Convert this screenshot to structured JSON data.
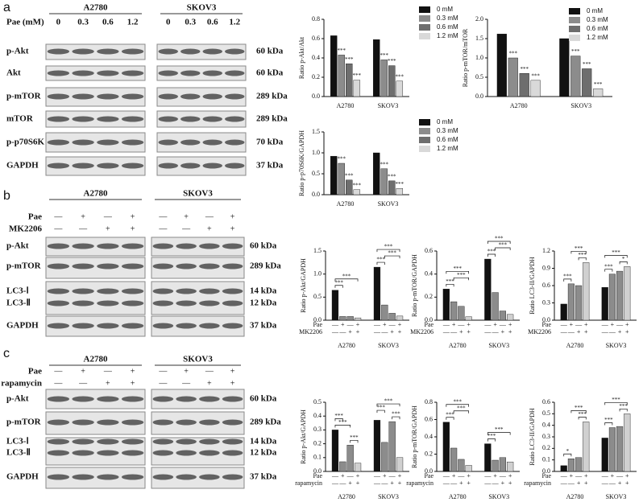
{
  "blots": {
    "a": {
      "label": "a",
      "treatment": "Pae (mM)",
      "cells": [
        {
          "name": "A2780",
          "lanes": [
            "0",
            "0.3",
            "0.6",
            "1.2"
          ]
        },
        {
          "name": "SKOV3",
          "lanes": [
            "0",
            "0.3",
            "0.6",
            "1.2"
          ]
        }
      ],
      "rows": [
        {
          "name": "p-Akt",
          "size": "60 kDa"
        },
        {
          "name": "Akt",
          "size": "60 kDa"
        },
        {
          "name": "p-mTOR",
          "size": "289 kDa"
        },
        {
          "name": "mTOR",
          "size": "289 kDa"
        },
        {
          "name": "p-p70S6K",
          "size": "70 kDa"
        },
        {
          "name": "GAPDH",
          "size": "37 kDa"
        }
      ]
    },
    "b": {
      "label": "b",
      "cells": [
        "A2780",
        "SKOV3"
      ],
      "treatments": [
        {
          "name": "Pae",
          "signs": [
            "—",
            "+",
            "—",
            "+"
          ]
        },
        {
          "name": "MK2206",
          "signs": [
            "—",
            "—",
            "+",
            "+"
          ]
        }
      ],
      "rows": [
        {
          "name": "p-Akt",
          "size": "60 kDa"
        },
        {
          "name": "p-mTOR",
          "size": "289 kDa"
        },
        {
          "name": "LC3-Ⅰ",
          "size": "14 kDa"
        },
        {
          "name": "LC3-Ⅱ",
          "size": "12 kDa"
        },
        {
          "name": "GAPDH",
          "size": "37 kDa"
        }
      ]
    },
    "c": {
      "label": "c",
      "cells": [
        "A2780",
        "SKOV3"
      ],
      "treatments": [
        {
          "name": "Pae",
          "signs": [
            "—",
            "+",
            "—",
            "+"
          ]
        },
        {
          "name": "rapamycin",
          "signs": [
            "—",
            "—",
            "+",
            "+"
          ]
        }
      ],
      "rows": [
        {
          "name": "p-Akt",
          "size": "60 kDa"
        },
        {
          "name": "p-mTOR",
          "size": "289 kDa"
        },
        {
          "name": "LC3-Ⅰ",
          "size": "14 kDa"
        },
        {
          "name": "LC3-Ⅱ",
          "size": "12 kDa"
        },
        {
          "name": "GAPDH",
          "size": "37 kDa"
        }
      ]
    }
  },
  "chart_data": [
    {
      "type": "bar",
      "ylabel": "Ratio p-Akt/Akt",
      "categories": [
        "A2780",
        "SKOV3"
      ],
      "ylim": [
        0,
        0.8
      ],
      "yticks": [
        {
          "value": 0,
          "label": "0.0"
        },
        0.2,
        0.4,
        0.6,
        0.8
      ],
      "series": [
        {
          "name": "0 mM",
          "color": "#111111",
          "values": [
            0.63,
            0.59
          ]
        },
        {
          "name": "0.3 mM",
          "color": "#8c8c8c",
          "values": [
            0.43,
            0.38
          ],
          "significance": [
            "***",
            "***"
          ]
        },
        {
          "name": "0.6 mM",
          "color": "#6e6e6e",
          "values": [
            0.34,
            0.32
          ],
          "significance": [
            "***",
            "***"
          ]
        },
        {
          "name": "1.2 mM",
          "color": "#d9d9d9",
          "values": [
            0.17,
            0.16
          ],
          "significance": [
            "***",
            "***"
          ]
        }
      ]
    },
    {
      "type": "bar",
      "ylabel": "Ratio p-mTOR/mTOR",
      "categories": [
        "A2780",
        "SKOV3"
      ],
      "ylim": [
        0,
        2
      ],
      "yticks": [
        {
          "value": 0,
          "label": "0.0"
        },
        0.5,
        {
          "value": 1,
          "label": "1.0"
        },
        1.5,
        {
          "value": 2,
          "label": "2.0"
        }
      ],
      "series": [
        {
          "name": "0 mM",
          "color": "#111111",
          "values": [
            1.62,
            1.5
          ]
        },
        {
          "name": "0.3 mM",
          "color": "#8c8c8c",
          "values": [
            1.0,
            1.05
          ],
          "significance": [
            "***",
            "***"
          ]
        },
        {
          "name": "0.6 mM",
          "color": "#6e6e6e",
          "values": [
            0.6,
            0.72
          ],
          "significance": [
            "***",
            "***"
          ]
        },
        {
          "name": "1.2 mM",
          "color": "#d9d9d9",
          "values": [
            0.42,
            0.2
          ],
          "significance": [
            "***",
            "***"
          ]
        }
      ]
    },
    {
      "type": "bar",
      "ylabel": "Ratio p-p70S6K/GAPDH",
      "categories": [
        "A2780",
        "SKOV3"
      ],
      "ylim": [
        0,
        1.5
      ],
      "yticks": [
        {
          "value": 0,
          "label": "0.0"
        },
        0.5,
        {
          "value": 1,
          "label": "1.0"
        },
        1.5
      ],
      "series": [
        {
          "name": "0 mM",
          "color": "#111111",
          "values": [
            0.92,
            1.0
          ]
        },
        {
          "name": "0.3 mM",
          "color": "#8c8c8c",
          "values": [
            0.75,
            0.62
          ],
          "significance": [
            "***",
            "***"
          ]
        },
        {
          "name": "0.6 mM",
          "color": "#6e6e6e",
          "values": [
            0.35,
            0.33
          ],
          "significance": [
            "***",
            "***"
          ]
        },
        {
          "name": "1.2 mM",
          "color": "#d9d9d9",
          "values": [
            0.12,
            0.15
          ],
          "significance": [
            "***",
            "***"
          ]
        }
      ]
    },
    {
      "type": "bar",
      "ylabel": "Ratio p-Akt/GAPDH",
      "categories": [
        "A2780",
        "SKOV3"
      ],
      "ylim": [
        0,
        1.5
      ],
      "yticks": [
        {
          "value": 0,
          "label": "0.0"
        },
        0.5,
        {
          "value": 1,
          "label": "1.0"
        },
        1.5
      ],
      "conditions": [
        {
          "name": "Pae",
          "signs": [
            "—",
            "+",
            "—",
            "+"
          ]
        },
        {
          "name": "MK2206",
          "signs": [
            "—",
            "—",
            "+",
            "+"
          ]
        }
      ],
      "series": [
        {
          "color": "#111111",
          "values": [
            0.65,
            1.15
          ]
        },
        {
          "color": "#8c8c8c",
          "values": [
            0.08,
            0.33
          ]
        },
        {
          "color": "#8c8c8c",
          "values": [
            0.08,
            0.15
          ]
        },
        {
          "color": "#d0d0d0",
          "values": [
            0.05,
            0.09
          ]
        }
      ],
      "brackets": [
        {
          "bars": [
            0,
            1
          ],
          "label": "***"
        },
        {
          "bars": [
            0,
            3
          ],
          "label": "***"
        },
        {
          "bars": [
            4,
            5
          ],
          "label": "***"
        },
        {
          "bars": [
            5,
            7
          ],
          "label": "***"
        },
        {
          "bars": [
            4,
            7
          ],
          "label": "***"
        }
      ]
    },
    {
      "type": "bar",
      "ylabel": "Ratio p-mTOR/GAPDH",
      "categories": [
        "A2780",
        "SKOV3"
      ],
      "ylim": [
        0,
        0.6
      ],
      "yticks": [
        {
          "value": 0,
          "label": "0.0"
        },
        0.2,
        0.4,
        0.6
      ],
      "conditions": [
        {
          "name": "Pae",
          "signs": [
            "—",
            "+",
            "—",
            "+"
          ]
        },
        {
          "name": "MK2206",
          "signs": [
            "—",
            "—",
            "+",
            "+"
          ]
        }
      ],
      "series": [
        {
          "color": "#111111",
          "values": [
            0.27,
            0.53
          ]
        },
        {
          "color": "#8c8c8c",
          "values": [
            0.16,
            0.24
          ]
        },
        {
          "color": "#8c8c8c",
          "values": [
            0.12,
            0.08
          ]
        },
        {
          "color": "#d0d0d0",
          "values": [
            0.03,
            0.05
          ]
        }
      ],
      "brackets": [
        {
          "bars": [
            0,
            1
          ],
          "label": "***"
        },
        {
          "bars": [
            1,
            3
          ],
          "label": "***"
        },
        {
          "bars": [
            0,
            3
          ],
          "label": "***"
        },
        {
          "bars": [
            4,
            5
          ],
          "label": "***"
        },
        {
          "bars": [
            5,
            7
          ],
          "label": "***"
        },
        {
          "bars": [
            4,
            7
          ],
          "label": "***"
        }
      ]
    },
    {
      "type": "bar",
      "ylabel": "Ratio LC3-II/GAPDH",
      "categories": [
        "A2780",
        "SKOV3"
      ],
      "ylim": [
        0,
        1.2
      ],
      "yticks": [
        {
          "value": 0,
          "label": "0.0"
        },
        0.3,
        0.6,
        0.9,
        1.2
      ],
      "conditions": [
        {
          "name": "Pae",
          "signs": [
            "—",
            "+",
            "—",
            "+"
          ]
        },
        {
          "name": "MK2206",
          "signs": [
            "—",
            "—",
            "+",
            "+"
          ]
        }
      ],
      "series": [
        {
          "color": "#111111",
          "values": [
            0.28,
            0.57
          ]
        },
        {
          "color": "#8c8c8c",
          "values": [
            0.63,
            0.8
          ]
        },
        {
          "color": "#8c8c8c",
          "values": [
            0.6,
            0.85
          ]
        },
        {
          "color": "#d0d0d0",
          "values": [
            1.0,
            0.93
          ]
        }
      ],
      "brackets": [
        {
          "bars": [
            0,
            1
          ],
          "label": "***"
        },
        {
          "bars": [
            2,
            3
          ],
          "label": "***"
        },
        {
          "bars": [
            1,
            3
          ],
          "label": "***"
        },
        {
          "bars": [
            4,
            5
          ],
          "label": "***"
        },
        {
          "bars": [
            6,
            7
          ],
          "label": "*"
        },
        {
          "bars": [
            4,
            7
          ],
          "label": "***"
        }
      ]
    },
    {
      "type": "bar",
      "ylabel": "Ratio p-Akt/GAPDH",
      "categories": [
        "A2780",
        "SKOV3"
      ],
      "ylim": [
        0,
        0.5
      ],
      "yticks": [
        {
          "value": 0,
          "label": "0.0"
        },
        0.1,
        0.2,
        0.3,
        0.4,
        0.5
      ],
      "conditions": [
        {
          "name": "Pae",
          "signs": [
            "—",
            "+",
            "—",
            "+"
          ]
        },
        {
          "name": "rapamycin",
          "signs": [
            "—",
            "—",
            "+",
            "+"
          ]
        }
      ],
      "series": [
        {
          "color": "#111111",
          "values": [
            0.3,
            0.37
          ]
        },
        {
          "color": "#8c8c8c",
          "values": [
            0.07,
            0.21
          ]
        },
        {
          "color": "#8c8c8c",
          "values": [
            0.19,
            0.36
          ]
        },
        {
          "color": "#d0d0d0",
          "values": [
            0.06,
            0.1
          ]
        }
      ],
      "brackets": [
        {
          "bars": [
            2,
            3
          ],
          "label": "***"
        },
        {
          "bars": [
            0,
            2
          ],
          "label": "***"
        },
        {
          "bars": [
            0,
            1
          ],
          "label": "***"
        },
        {
          "bars": [
            6,
            7
          ],
          "label": "***"
        },
        {
          "bars": [
            4,
            5
          ],
          "label": "***"
        },
        {
          "bars": [
            4,
            7
          ],
          "label": "***"
        }
      ]
    },
    {
      "type": "bar",
      "ylabel": "Ratio p-mTOR/GAPDH",
      "categories": [
        "A2780",
        "SKOV3"
      ],
      "ylim": [
        0,
        0.8
      ],
      "yticks": [
        {
          "value": 0,
          "label": "0.0"
        },
        0.2,
        0.4,
        0.6,
        0.8
      ],
      "conditions": [
        {
          "name": "Pae",
          "signs": [
            "—",
            "+",
            "—",
            "+"
          ]
        },
        {
          "name": "rapamycin",
          "signs": [
            "—",
            "—",
            "+",
            "+"
          ]
        }
      ],
      "series": [
        {
          "color": "#111111",
          "values": [
            0.57,
            0.32
          ]
        },
        {
          "color": "#8c8c8c",
          "values": [
            0.27,
            0.13
          ]
        },
        {
          "color": "#8c8c8c",
          "values": [
            0.14,
            0.16
          ]
        },
        {
          "color": "#d0d0d0",
          "values": [
            0.07,
            0.11
          ]
        }
      ],
      "brackets": [
        {
          "bars": [
            0,
            1
          ],
          "label": "***"
        },
        {
          "bars": [
            1,
            3
          ],
          "label": "***"
        },
        {
          "bars": [
            0,
            3
          ],
          "label": "***"
        },
        {
          "bars": [
            4,
            5
          ],
          "label": "***"
        },
        {
          "bars": [
            4,
            7
          ],
          "label": "***"
        }
      ]
    },
    {
      "type": "bar",
      "ylabel": "Ratio LC3-II/GAPDH",
      "categories": [
        "A2780",
        "SKOV3"
      ],
      "ylim": [
        0,
        0.6
      ],
      "yticks": [
        {
          "value": 0,
          "label": "0.0"
        },
        0.1,
        0.2,
        0.3,
        0.4,
        0.5,
        0.6
      ],
      "conditions": [
        {
          "name": "Pae",
          "signs": [
            "—",
            "+",
            "—",
            "+"
          ]
        },
        {
          "name": "rapamycin",
          "signs": [
            "—",
            "—",
            "+",
            "+"
          ]
        }
      ],
      "series": [
        {
          "color": "#111111",
          "values": [
            0.05,
            0.29
          ]
        },
        {
          "color": "#8c8c8c",
          "values": [
            0.11,
            0.38
          ]
        },
        {
          "color": "#8c8c8c",
          "values": [
            0.12,
            0.39
          ]
        },
        {
          "color": "#d0d0d0",
          "values": [
            0.43,
            0.5
          ]
        }
      ],
      "brackets": [
        {
          "bars": [
            0,
            1
          ],
          "label": "*"
        },
        {
          "bars": [
            2,
            3
          ],
          "label": "***"
        },
        {
          "bars": [
            1,
            3
          ],
          "label": "***"
        },
        {
          "bars": [
            4,
            5
          ],
          "label": "***"
        },
        {
          "bars": [
            6,
            7
          ],
          "label": "***"
        },
        {
          "bars": [
            4,
            7
          ],
          "label": "***"
        }
      ]
    }
  ]
}
